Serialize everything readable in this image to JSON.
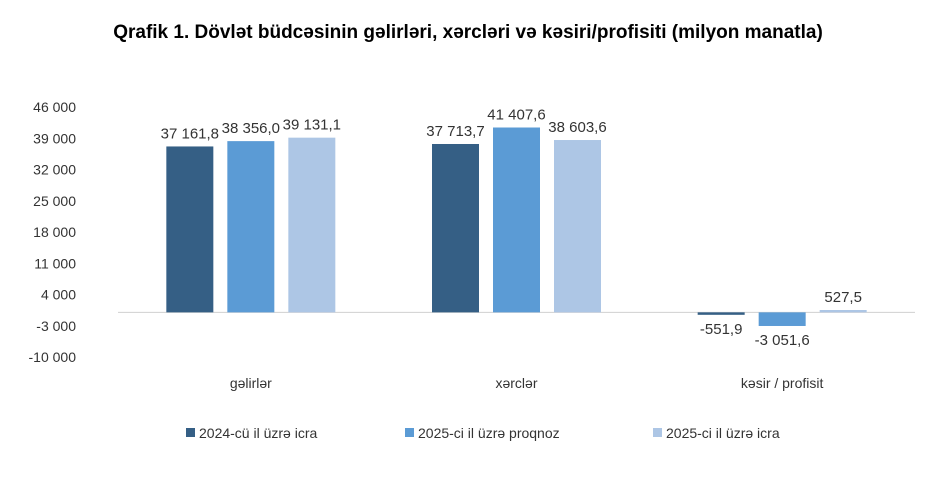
{
  "chart_data": {
    "type": "bar",
    "title": "Qrafik 1. Dövlət büdcəsinin gəlirləri, xərcləri və kəsiri/profisiti (milyon manatla)",
    "categories": [
      "gəlirlər",
      "xərclər",
      "kəsir / profisit"
    ],
    "series": [
      {
        "name": "2024-cü il üzrə icra",
        "values": [
          37161.8,
          37713.7,
          -551.9
        ],
        "labels": [
          "37 161,8",
          "37 713,7",
          "-551,9"
        ],
        "color": "#355F85"
      },
      {
        "name": "2025-ci il üzrə proqnoz",
        "values": [
          38356.0,
          41407.6,
          -3051.6
        ],
        "labels": [
          "38 356,0",
          "41 407,6",
          "-3 051,6"
        ],
        "color": "#5B9BD5"
      },
      {
        "name": "2025-ci il üzrə icra",
        "values": [
          39131.1,
          38603.6,
          527.5
        ],
        "labels": [
          "39 131,1",
          "38 603,6",
          "527,5"
        ],
        "color": "#ADC6E5"
      }
    ],
    "yticks": [
      46000,
      39000,
      32000,
      25000,
      18000,
      11000,
      4000,
      -3000,
      -10000
    ],
    "ytick_labels": [
      "46 000",
      "39 000",
      "32 000",
      "25 000",
      "18 000",
      "11 000",
      "4 000",
      "-3 000",
      "-10 000"
    ],
    "ylim": [
      -10000,
      46000
    ],
    "grid": false,
    "legend_position": "bottom"
  }
}
